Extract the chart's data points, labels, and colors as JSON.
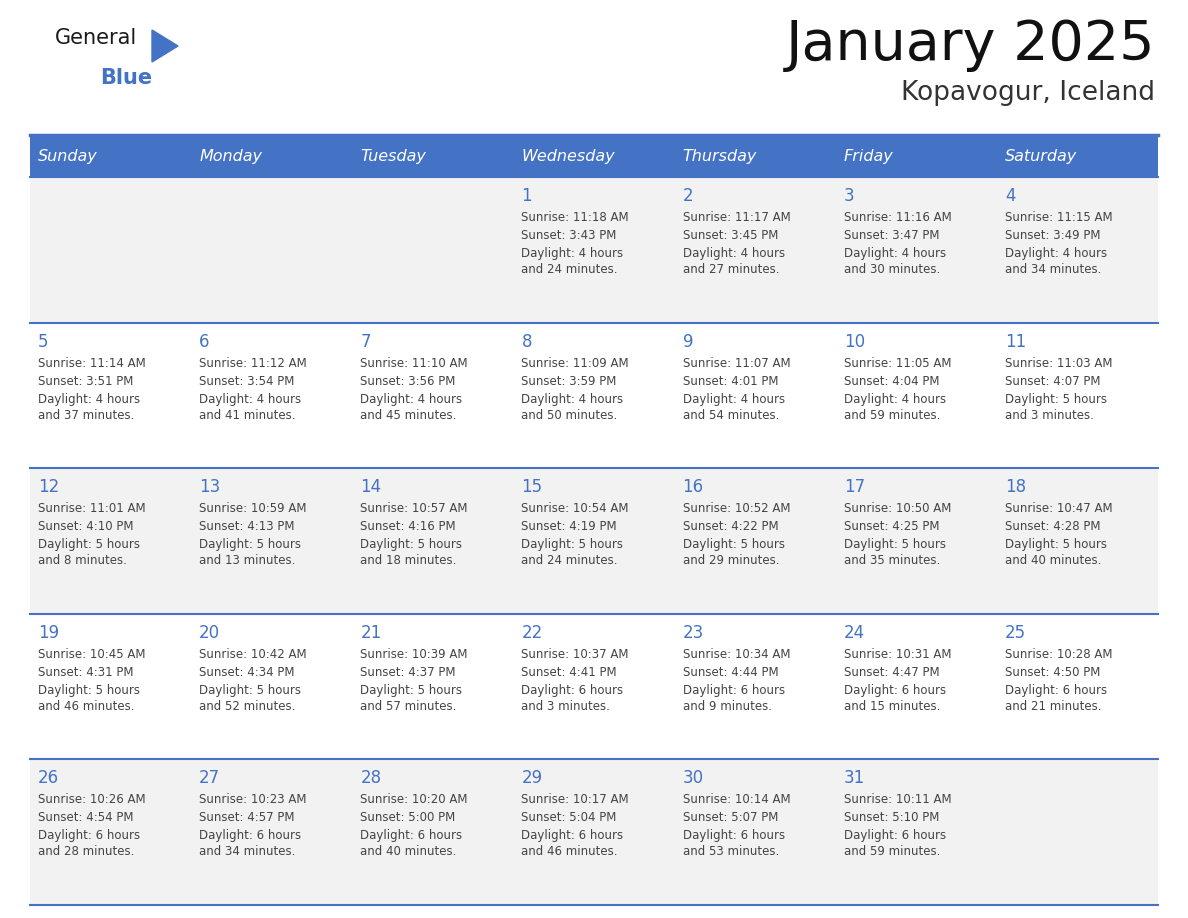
{
  "title": "January 2025",
  "subtitle": "Kopavogur, Iceland",
  "header_color": "#4472C4",
  "header_text_color": "#FFFFFF",
  "day_names": [
    "Sunday",
    "Monday",
    "Tuesday",
    "Wednesday",
    "Thursday",
    "Friday",
    "Saturday"
  ],
  "background_color": "#FFFFFF",
  "cell_bg_even": "#F2F2F2",
  "cell_bg_odd": "#FFFFFF",
  "border_color": "#4472C4",
  "text_color": "#444444",
  "day_num_color": "#4472C4",
  "days": [
    {
      "day": 1,
      "col": 3,
      "row": 0,
      "sunrise": "11:18 AM",
      "sunset": "3:43 PM",
      "daylight": "4 hours and 24 minutes."
    },
    {
      "day": 2,
      "col": 4,
      "row": 0,
      "sunrise": "11:17 AM",
      "sunset": "3:45 PM",
      "daylight": "4 hours and 27 minutes."
    },
    {
      "day": 3,
      "col": 5,
      "row": 0,
      "sunrise": "11:16 AM",
      "sunset": "3:47 PM",
      "daylight": "4 hours and 30 minutes."
    },
    {
      "day": 4,
      "col": 6,
      "row": 0,
      "sunrise": "11:15 AM",
      "sunset": "3:49 PM",
      "daylight": "4 hours and 34 minutes."
    },
    {
      "day": 5,
      "col": 0,
      "row": 1,
      "sunrise": "11:14 AM",
      "sunset": "3:51 PM",
      "daylight": "4 hours and 37 minutes."
    },
    {
      "day": 6,
      "col": 1,
      "row": 1,
      "sunrise": "11:12 AM",
      "sunset": "3:54 PM",
      "daylight": "4 hours and 41 minutes."
    },
    {
      "day": 7,
      "col": 2,
      "row": 1,
      "sunrise": "11:10 AM",
      "sunset": "3:56 PM",
      "daylight": "4 hours and 45 minutes."
    },
    {
      "day": 8,
      "col": 3,
      "row": 1,
      "sunrise": "11:09 AM",
      "sunset": "3:59 PM",
      "daylight": "4 hours and 50 minutes."
    },
    {
      "day": 9,
      "col": 4,
      "row": 1,
      "sunrise": "11:07 AM",
      "sunset": "4:01 PM",
      "daylight": "4 hours and 54 minutes."
    },
    {
      "day": 10,
      "col": 5,
      "row": 1,
      "sunrise": "11:05 AM",
      "sunset": "4:04 PM",
      "daylight": "4 hours and 59 minutes."
    },
    {
      "day": 11,
      "col": 6,
      "row": 1,
      "sunrise": "11:03 AM",
      "sunset": "4:07 PM",
      "daylight": "5 hours and 3 minutes."
    },
    {
      "day": 12,
      "col": 0,
      "row": 2,
      "sunrise": "11:01 AM",
      "sunset": "4:10 PM",
      "daylight": "5 hours and 8 minutes."
    },
    {
      "day": 13,
      "col": 1,
      "row": 2,
      "sunrise": "10:59 AM",
      "sunset": "4:13 PM",
      "daylight": "5 hours and 13 minutes."
    },
    {
      "day": 14,
      "col": 2,
      "row": 2,
      "sunrise": "10:57 AM",
      "sunset": "4:16 PM",
      "daylight": "5 hours and 18 minutes."
    },
    {
      "day": 15,
      "col": 3,
      "row": 2,
      "sunrise": "10:54 AM",
      "sunset": "4:19 PM",
      "daylight": "5 hours and 24 minutes."
    },
    {
      "day": 16,
      "col": 4,
      "row": 2,
      "sunrise": "10:52 AM",
      "sunset": "4:22 PM",
      "daylight": "5 hours and 29 minutes."
    },
    {
      "day": 17,
      "col": 5,
      "row": 2,
      "sunrise": "10:50 AM",
      "sunset": "4:25 PM",
      "daylight": "5 hours and 35 minutes."
    },
    {
      "day": 18,
      "col": 6,
      "row": 2,
      "sunrise": "10:47 AM",
      "sunset": "4:28 PM",
      "daylight": "5 hours and 40 minutes."
    },
    {
      "day": 19,
      "col": 0,
      "row": 3,
      "sunrise": "10:45 AM",
      "sunset": "4:31 PM",
      "daylight": "5 hours and 46 minutes."
    },
    {
      "day": 20,
      "col": 1,
      "row": 3,
      "sunrise": "10:42 AM",
      "sunset": "4:34 PM",
      "daylight": "5 hours and 52 minutes."
    },
    {
      "day": 21,
      "col": 2,
      "row": 3,
      "sunrise": "10:39 AM",
      "sunset": "4:37 PM",
      "daylight": "5 hours and 57 minutes."
    },
    {
      "day": 22,
      "col": 3,
      "row": 3,
      "sunrise": "10:37 AM",
      "sunset": "4:41 PM",
      "daylight": "6 hours and 3 minutes."
    },
    {
      "day": 23,
      "col": 4,
      "row": 3,
      "sunrise": "10:34 AM",
      "sunset": "4:44 PM",
      "daylight": "6 hours and 9 minutes."
    },
    {
      "day": 24,
      "col": 5,
      "row": 3,
      "sunrise": "10:31 AM",
      "sunset": "4:47 PM",
      "daylight": "6 hours and 15 minutes."
    },
    {
      "day": 25,
      "col": 6,
      "row": 3,
      "sunrise": "10:28 AM",
      "sunset": "4:50 PM",
      "daylight": "6 hours and 21 minutes."
    },
    {
      "day": 26,
      "col": 0,
      "row": 4,
      "sunrise": "10:26 AM",
      "sunset": "4:54 PM",
      "daylight": "6 hours and 28 minutes."
    },
    {
      "day": 27,
      "col": 1,
      "row": 4,
      "sunrise": "10:23 AM",
      "sunset": "4:57 PM",
      "daylight": "6 hours and 34 minutes."
    },
    {
      "day": 28,
      "col": 2,
      "row": 4,
      "sunrise": "10:20 AM",
      "sunset": "5:00 PM",
      "daylight": "6 hours and 40 minutes."
    },
    {
      "day": 29,
      "col": 3,
      "row": 4,
      "sunrise": "10:17 AM",
      "sunset": "5:04 PM",
      "daylight": "6 hours and 46 minutes."
    },
    {
      "day": 30,
      "col": 4,
      "row": 4,
      "sunrise": "10:14 AM",
      "sunset": "5:07 PM",
      "daylight": "6 hours and 53 minutes."
    },
    {
      "day": 31,
      "col": 5,
      "row": 4,
      "sunrise": "10:11 AM",
      "sunset": "5:10 PM",
      "daylight": "6 hours and 59 minutes."
    }
  ],
  "num_rows": 5,
  "logo_text_general": "General",
  "logo_text_blue": "Blue",
  "logo_triangle_color": "#4472C4",
  "logo_blue_color": "#4472C4",
  "logo_general_color": "#1a1a1a"
}
